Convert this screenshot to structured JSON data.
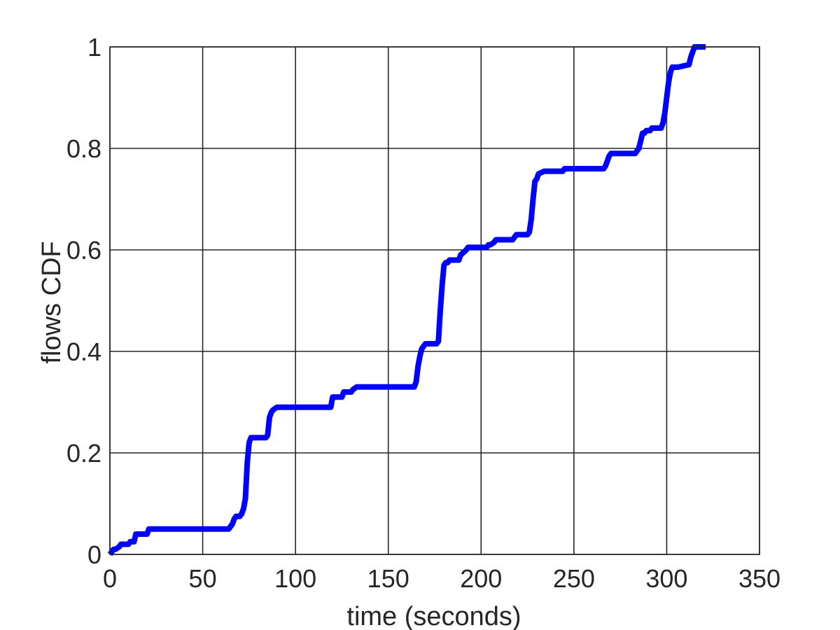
{
  "chart_data": {
    "type": "line",
    "title": "",
    "xlabel": "time (seconds)",
    "ylabel": "flows CDF",
    "xlim": [
      0,
      350
    ],
    "ylim": [
      0,
      1
    ],
    "xticks": [
      0,
      50,
      100,
      150,
      200,
      250,
      300,
      350
    ],
    "yticks": [
      0,
      0.2,
      0.4,
      0.6,
      0.8,
      1
    ],
    "xtick_labels": [
      "0",
      "50",
      "100",
      "150",
      "200",
      "250",
      "300",
      "350"
    ],
    "ytick_labels": [
      "0",
      "0.2",
      "0.4",
      "0.6",
      "0.8",
      "1"
    ],
    "grid": true,
    "series": [
      {
        "color": "#0000ff",
        "x": [
          0,
          2,
          3,
          5,
          6,
          10,
          11,
          13,
          14,
          20,
          21,
          64,
          65,
          66,
          67,
          68,
          70,
          71,
          72,
          73,
          74,
          75,
          76,
          77,
          84,
          85,
          86,
          87,
          88,
          90,
          91,
          119,
          120,
          121,
          122,
          125,
          126,
          130,
          131,
          133,
          134,
          164,
          165,
          166,
          167,
          168,
          169,
          170,
          171,
          172,
          176,
          177,
          178,
          179,
          180,
          181,
          182,
          183,
          184,
          188,
          189,
          192,
          193,
          194,
          195,
          196,
          197,
          203,
          204,
          205,
          207,
          208,
          209,
          210,
          217,
          218,
          219,
          225,
          226,
          227,
          228,
          229,
          230,
          231,
          234,
          235,
          244,
          245,
          246,
          266,
          267,
          268,
          269,
          270,
          271,
          272,
          283,
          284,
          285,
          286,
          287,
          288,
          289,
          290,
          291,
          292,
          297,
          298,
          299,
          300,
          301,
          302,
          303,
          304,
          305,
          306,
          312,
          313,
          314,
          315,
          316,
          317,
          318,
          319,
          320,
          321
        ],
        "y": [
          0,
          0.01,
          0.01,
          0.015,
          0.02,
          0.02,
          0.025,
          0.025,
          0.04,
          0.04,
          0.05,
          0.05,
          0.055,
          0.06,
          0.07,
          0.075,
          0.075,
          0.08,
          0.09,
          0.11,
          0.18,
          0.22,
          0.23,
          0.23,
          0.23,
          0.235,
          0.27,
          0.28,
          0.285,
          0.29,
          0.29,
          0.29,
          0.31,
          0.31,
          0.31,
          0.31,
          0.32,
          0.32,
          0.325,
          0.33,
          0.33,
          0.33,
          0.34,
          0.37,
          0.39,
          0.405,
          0.41,
          0.415,
          0.415,
          0.415,
          0.415,
          0.42,
          0.48,
          0.53,
          0.57,
          0.575,
          0.575,
          0.58,
          0.58,
          0.58,
          0.59,
          0.6,
          0.605,
          0.605,
          0.605,
          0.605,
          0.605,
          0.605,
          0.61,
          0.61,
          0.615,
          0.62,
          0.62,
          0.62,
          0.62,
          0.625,
          0.63,
          0.63,
          0.635,
          0.66,
          0.7,
          0.735,
          0.74,
          0.75,
          0.755,
          0.755,
          0.755,
          0.76,
          0.76,
          0.76,
          0.765,
          0.775,
          0.785,
          0.79,
          0.79,
          0.79,
          0.79,
          0.795,
          0.8,
          0.815,
          0.83,
          0.83,
          0.835,
          0.835,
          0.835,
          0.84,
          0.84,
          0.85,
          0.87,
          0.9,
          0.93,
          0.95,
          0.96,
          0.96,
          0.96,
          0.96,
          0.965,
          0.98,
          0.99,
          1,
          1,
          1,
          1,
          1,
          1,
          1
        ]
      }
    ]
  }
}
